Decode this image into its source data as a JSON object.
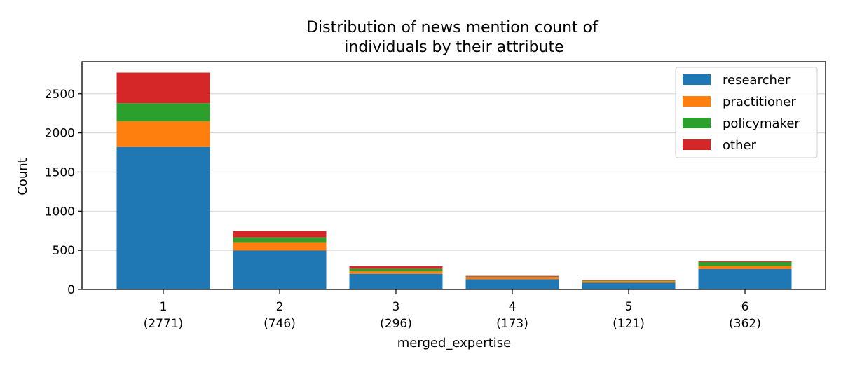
{
  "chart_data": {
    "type": "bar",
    "stacked": true,
    "title_lines": [
      "Distribution of news mention count of",
      "individuals by their attribute"
    ],
    "xlabel": "merged_expertise",
    "ylabel": "Count",
    "categories": [
      "1",
      "2",
      "3",
      "4",
      "5",
      "6"
    ],
    "category_totals": [
      "(2771)",
      "(746)",
      "(296)",
      "(173)",
      "(121)",
      "(362)"
    ],
    "series": [
      {
        "name": "researcher",
        "color": "#1f77b4",
        "values": [
          1820,
          500,
          200,
          130,
          85,
          260
        ]
      },
      {
        "name": "practitioner",
        "color": "#ff7f0e",
        "values": [
          330,
          105,
          35,
          28,
          22,
          40
        ]
      },
      {
        "name": "policymaker",
        "color": "#2ca02c",
        "values": [
          230,
          60,
          30,
          5,
          8,
          50
        ]
      },
      {
        "name": "other",
        "color": "#d62728",
        "values": [
          391,
          81,
          31,
          10,
          6,
          12
        ]
      }
    ],
    "ylim": [
      0,
      2910
    ],
    "yticks": [
      0,
      500,
      1000,
      1500,
      2000,
      2500
    ],
    "grid": "horizontal",
    "legend_position": "upper right"
  }
}
